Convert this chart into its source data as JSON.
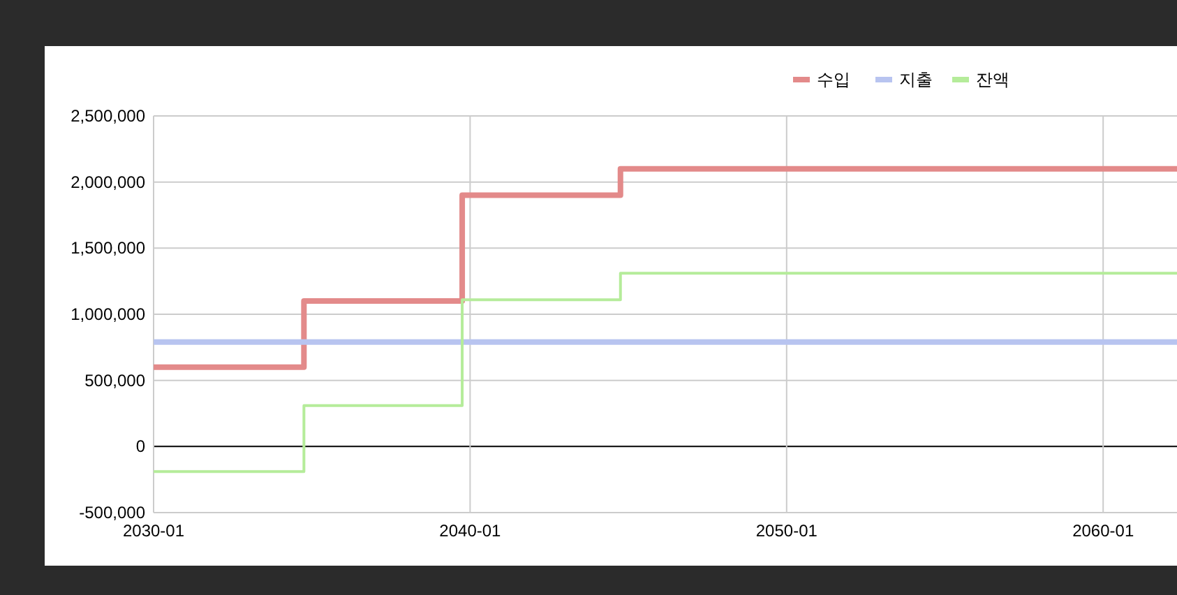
{
  "chart_data": {
    "type": "step",
    "legend": "top right",
    "grid": true,
    "line_style": "solid",
    "xlim": [
      "2030-01",
      "2062-05"
    ],
    "xticks": [
      "2030-01",
      "2040-01",
      "2050-01",
      "2060-01"
    ],
    "ylim": [
      -500000,
      2500000
    ],
    "yticks": [
      {
        "value": -500000,
        "label": "-500,000"
      },
      {
        "value": 0,
        "label": "0"
      },
      {
        "value": 500000,
        "label": "500,000"
      },
      {
        "value": 1000000,
        "label": "1,000,000"
      },
      {
        "value": 1500000,
        "label": "1,500,000"
      },
      {
        "value": 2000000,
        "label": "2,000,000"
      },
      {
        "value": 2500000,
        "label": "2,500,000"
      }
    ],
    "series": [
      {
        "name": "수입",
        "color": "#e38a8a",
        "x": [
          "2030-01",
          "2034-10",
          "2039-10",
          "2044-10",
          "2062-05"
        ],
        "values": [
          600000,
          1100000,
          1900000,
          2100000,
          2100000
        ]
      },
      {
        "name": "지출",
        "color": "#b8c4f0",
        "x": [
          "2030-01",
          "2062-05"
        ],
        "values": [
          790000,
          790000
        ]
      },
      {
        "name": "잔액",
        "color": "#b5ec9a",
        "x": [
          "2030-01",
          "2034-10",
          "2039-10",
          "2044-10",
          "2062-05"
        ],
        "values": [
          -190000,
          310000,
          1110000,
          1310000,
          1310000
        ]
      }
    ]
  }
}
